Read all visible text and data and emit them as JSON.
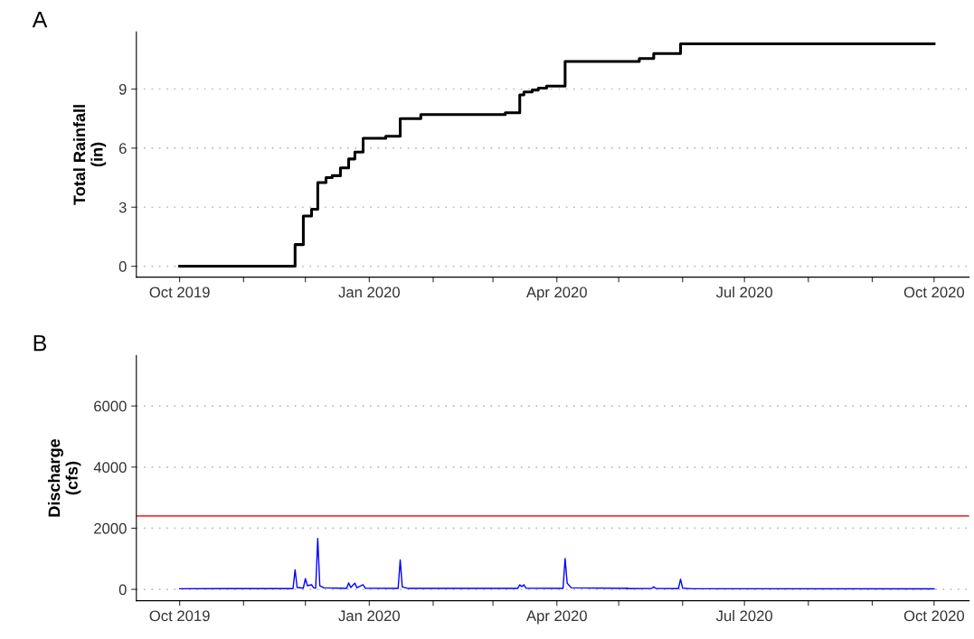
{
  "chart_data": [
    {
      "type": "step",
      "title": "A",
      "ylabel": "Total Rainfall\n(in)",
      "xlim": [
        "2019-09-10",
        "2020-10-18"
      ],
      "ylim": [
        -0.55,
        11.9
      ],
      "yticks": [
        0,
        3,
        6,
        9
      ],
      "xticks": [
        {
          "value": "2019-10-01",
          "label": "Oct 2019"
        },
        {
          "value": "2019-11-01",
          "label": null
        },
        {
          "value": "2019-12-01",
          "label": null
        },
        {
          "value": "2020-01-01",
          "label": "Jan 2020"
        },
        {
          "value": "2020-02-01",
          "label": null
        },
        {
          "value": "2020-03-01",
          "label": null
        },
        {
          "value": "2020-04-01",
          "label": "Apr 2020"
        },
        {
          "value": "2020-05-01",
          "label": null
        },
        {
          "value": "2020-06-01",
          "label": null
        },
        {
          "value": "2020-07-01",
          "label": "Jul 2020"
        },
        {
          "value": "2020-08-01",
          "label": null
        },
        {
          "value": "2020-09-01",
          "label": null
        },
        {
          "value": "2020-10-01",
          "label": "Oct 2020"
        }
      ],
      "grid": "y",
      "series": [
        {
          "color": "#000000",
          "x": [
            "2019-10-01",
            "2019-11-26",
            "2019-11-30",
            "2019-12-04",
            "2019-12-07",
            "2019-12-11",
            "2019-12-14",
            "2019-12-18",
            "2019-12-22",
            "2019-12-25",
            "2019-12-29",
            "2020-01-09",
            "2020-01-16",
            "2020-01-26",
            "2020-03-07",
            "2020-03-14",
            "2020-03-16",
            "2020-03-20",
            "2020-03-23",
            "2020-03-27",
            "2020-04-05",
            "2020-05-11",
            "2020-05-18",
            "2020-05-31",
            "2020-10-01"
          ],
          "values": [
            0,
            1.1,
            2.55,
            2.9,
            4.25,
            4.5,
            4.6,
            5.0,
            5.45,
            5.8,
            6.5,
            6.6,
            7.5,
            7.7,
            7.8,
            8.7,
            8.85,
            8.95,
            9.05,
            9.15,
            10.4,
            10.55,
            10.8,
            11.3,
            11.3
          ]
        }
      ]
    },
    {
      "type": "line",
      "title": "B",
      "ylabel": "Discharge\n(cfs)",
      "xlim": [
        "2019-09-10",
        "2020-10-18"
      ],
      "ylim": [
        -370,
        7650
      ],
      "yticks": [
        0,
        2000,
        4000,
        6000
      ],
      "xticks": [
        {
          "value": "2019-10-01",
          "label": "Oct 2019"
        },
        {
          "value": "2019-11-01",
          "label": null
        },
        {
          "value": "2019-12-01",
          "label": null
        },
        {
          "value": "2020-01-01",
          "label": "Jan 2020"
        },
        {
          "value": "2020-02-01",
          "label": null
        },
        {
          "value": "2020-03-01",
          "label": null
        },
        {
          "value": "2020-04-01",
          "label": "Apr 2020"
        },
        {
          "value": "2020-05-01",
          "label": null
        },
        {
          "value": "2020-06-01",
          "label": null
        },
        {
          "value": "2020-07-01",
          "label": "Jul 2020"
        },
        {
          "value": "2020-08-01",
          "label": null
        },
        {
          "value": "2020-09-01",
          "label": null
        },
        {
          "value": "2020-10-01",
          "label": "Oct 2020"
        }
      ],
      "grid": "y",
      "ref_lines": [
        {
          "axis": "y",
          "value": 2400,
          "color": "#ff3333"
        }
      ],
      "series": [
        {
          "color": "#0000ff",
          "x": [
            "2019-10-01",
            "2019-11-25",
            "2019-11-26",
            "2019-11-27",
            "2019-11-30",
            "2019-12-01",
            "2019-12-02",
            "2019-12-04",
            "2019-12-05",
            "2019-12-06",
            "2019-12-07",
            "2019-12-08",
            "2019-12-10",
            "2019-12-21",
            "2019-12-22",
            "2019-12-23",
            "2019-12-25",
            "2019-12-26",
            "2019-12-29",
            "2019-12-30",
            "2020-01-15",
            "2020-01-16",
            "2020-01-17",
            "2020-01-20",
            "2020-03-13",
            "2020-03-14",
            "2020-03-15",
            "2020-03-16",
            "2020-03-17",
            "2020-04-04",
            "2020-04-05",
            "2020-04-06",
            "2020-04-08",
            "2020-05-04",
            "2020-05-05",
            "2020-05-06",
            "2020-05-17",
            "2020-05-18",
            "2020-05-19",
            "2020-05-30",
            "2020-05-31",
            "2020-06-01",
            "2020-06-05",
            "2020-10-01"
          ],
          "values": [
            20,
            25,
            640,
            60,
            40,
            350,
            120,
            150,
            50,
            40,
            1665,
            120,
            50,
            30,
            210,
            60,
            200,
            50,
            150,
            40,
            30,
            965,
            80,
            30,
            30,
            150,
            90,
            150,
            40,
            30,
            1010,
            200,
            50,
            30,
            40,
            25,
            30,
            80,
            30,
            25,
            330,
            40,
            20,
            15
          ]
        }
      ]
    }
  ]
}
